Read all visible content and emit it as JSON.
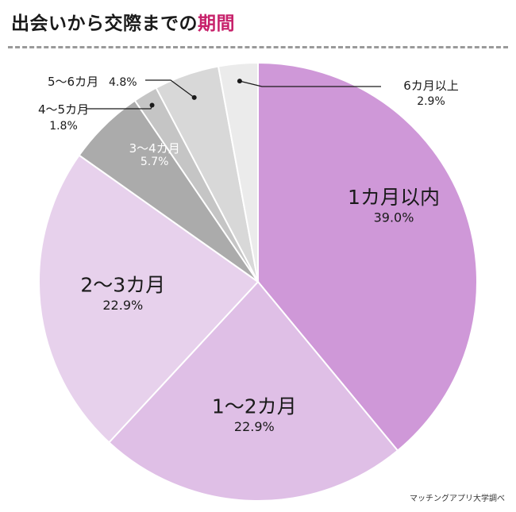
{
  "header": {
    "title_main": "出会いから交際までの",
    "title_accent": "期間"
  },
  "source": "マッチングアプリ大学調べ",
  "chart_data": {
    "type": "pie",
    "title": "出会いから交際までの期間",
    "start": "12 o'clock",
    "direction": "clockwise",
    "slices": [
      {
        "label": "1カ月以内",
        "value": 39.0,
        "value_label": "39.0%",
        "color": "#cf98d8"
      },
      {
        "label": "1〜2カ月",
        "value": 22.9,
        "value_label": "22.9%",
        "color": "#dfbfe6"
      },
      {
        "label": "2〜3カ月",
        "value": 22.9,
        "value_label": "22.9%",
        "color": "#e7d1ec"
      },
      {
        "label": "3〜4カ月",
        "value": 5.7,
        "value_label": "5.7%",
        "color": "#ababab"
      },
      {
        "label": "4〜5カ月",
        "value": 1.8,
        "value_label": "1.8%",
        "color": "#c5c5c5"
      },
      {
        "label": "5〜6カ月",
        "value": 4.8,
        "value_label": "4.8%",
        "color": "#d8d8d8"
      },
      {
        "label": "6カ月以上",
        "value": 2.9,
        "value_label": "2.9%",
        "color": "#ebebeb"
      }
    ]
  }
}
